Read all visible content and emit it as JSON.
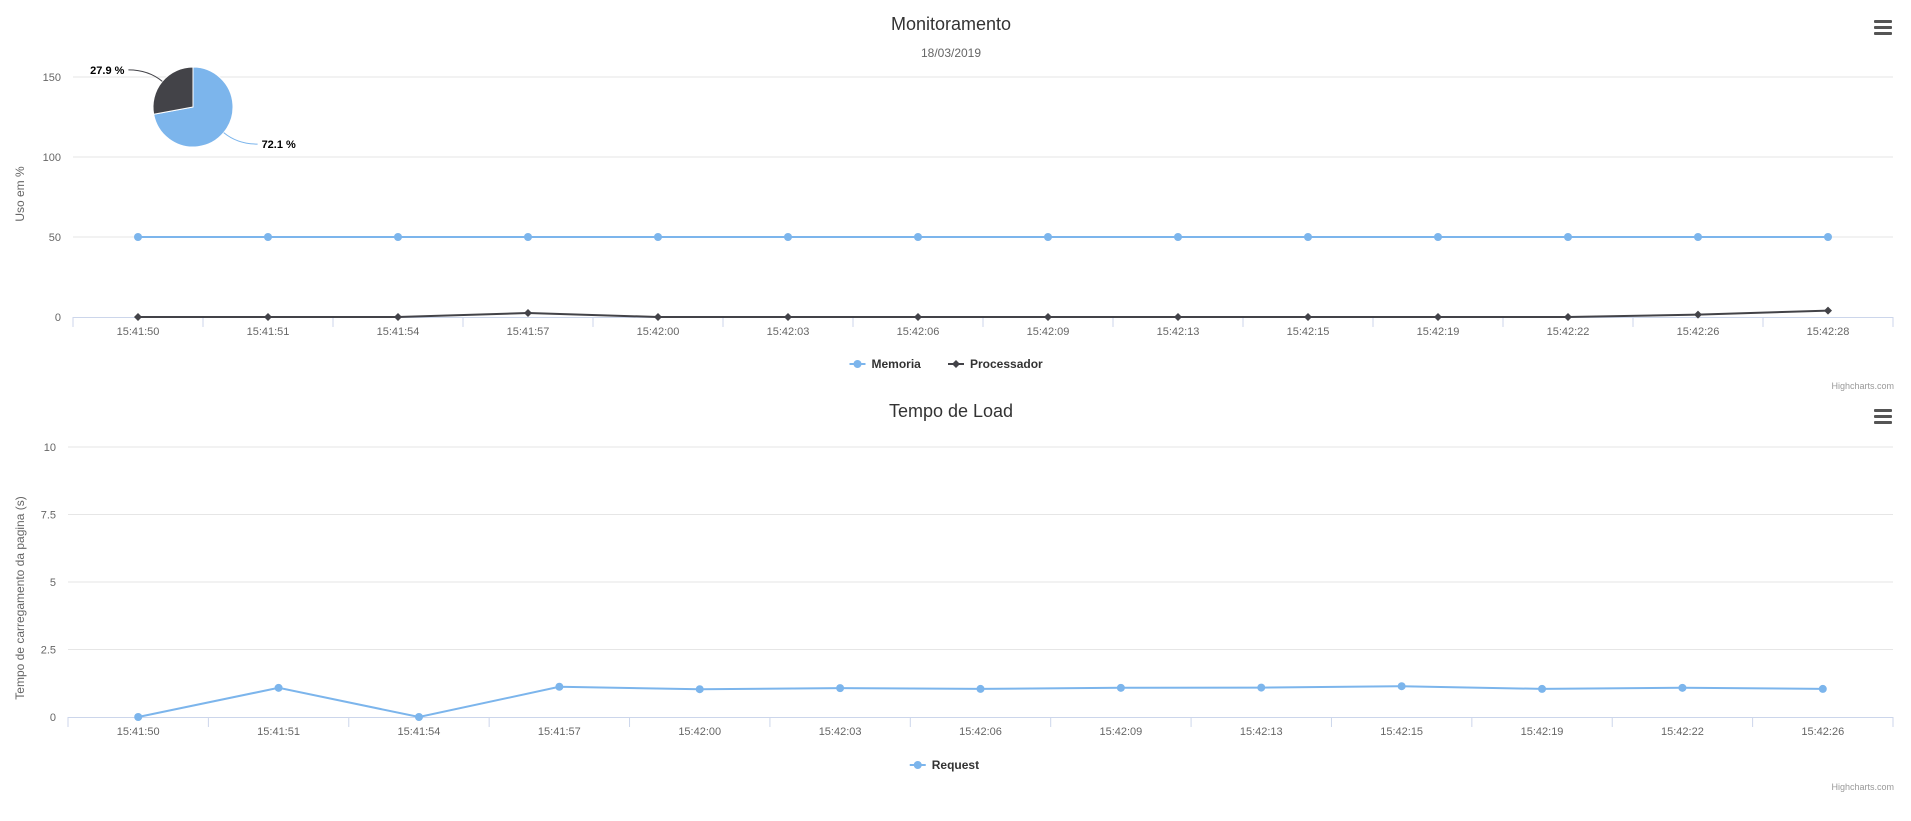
{
  "charts": [
    {
      "title": "Monitoramento",
      "subtitle": "18/03/2019",
      "credits": "Highcharts.com",
      "menu_icon": "hamburger-menu-icon",
      "ylabel": "Uso em %"
    },
    {
      "title": "Tempo de Load",
      "credits": "Highcharts.com",
      "menu_icon": "hamburger-menu-icon",
      "ylabel": "Tempo de carregamento da pagina (s)"
    }
  ],
  "chart_data": [
    {
      "type": "line",
      "title": "Monitoramento",
      "subtitle": "18/03/2019",
      "xlabel": "",
      "ylabel": "Uso em %",
      "categories": [
        "15:41:50",
        "15:41:51",
        "15:41:54",
        "15:41:57",
        "15:42:00",
        "15:42:03",
        "15:42:06",
        "15:42:09",
        "15:42:13",
        "15:42:15",
        "15:42:19",
        "15:42:22",
        "15:42:26",
        "15:42:28"
      ],
      "ylim": [
        0,
        150
      ],
      "yticks": [
        0,
        50,
        100,
        150
      ],
      "grid": true,
      "legend_position": "bottom-center",
      "series": [
        {
          "name": "Memoria",
          "color": "#7cb5ec",
          "marker": "circle",
          "values": [
            50,
            50,
            50,
            50,
            50,
            50,
            50,
            50,
            50,
            50,
            50,
            50,
            50,
            50
          ]
        },
        {
          "name": "Processador",
          "color": "#434348",
          "marker": "diamond",
          "values": [
            0,
            0,
            0,
            2.5,
            0,
            0,
            0,
            0,
            0,
            0,
            0,
            0,
            1.5,
            4
          ]
        }
      ],
      "inset_pie": {
        "type": "pie",
        "slices": [
          {
            "label": "72.1 %",
            "value": 72.1,
            "color": "#7cb5ec"
          },
          {
            "label": "27.9 %",
            "value": 27.9,
            "color": "#434348"
          }
        ]
      }
    },
    {
      "type": "line",
      "title": "Tempo de Load",
      "xlabel": "",
      "ylabel": "Tempo de carregamento da pagina (s)",
      "categories": [
        "15:41:50",
        "15:41:51",
        "15:41:54",
        "15:41:57",
        "15:42:00",
        "15:42:03",
        "15:42:06",
        "15:42:09",
        "15:42:13",
        "15:42:15",
        "15:42:19",
        "15:42:22",
        "15:42:26"
      ],
      "ylim": [
        0,
        10
      ],
      "yticks": [
        0,
        2.5,
        5,
        7.5,
        10
      ],
      "grid": true,
      "legend_position": "bottom-center",
      "series": [
        {
          "name": "Request",
          "color": "#7cb5ec",
          "marker": "circle",
          "values": [
            0,
            1.08,
            0,
            1.12,
            1.03,
            1.07,
            1.04,
            1.08,
            1.09,
            1.14,
            1.04,
            1.08,
            1.04
          ]
        }
      ]
    }
  ]
}
